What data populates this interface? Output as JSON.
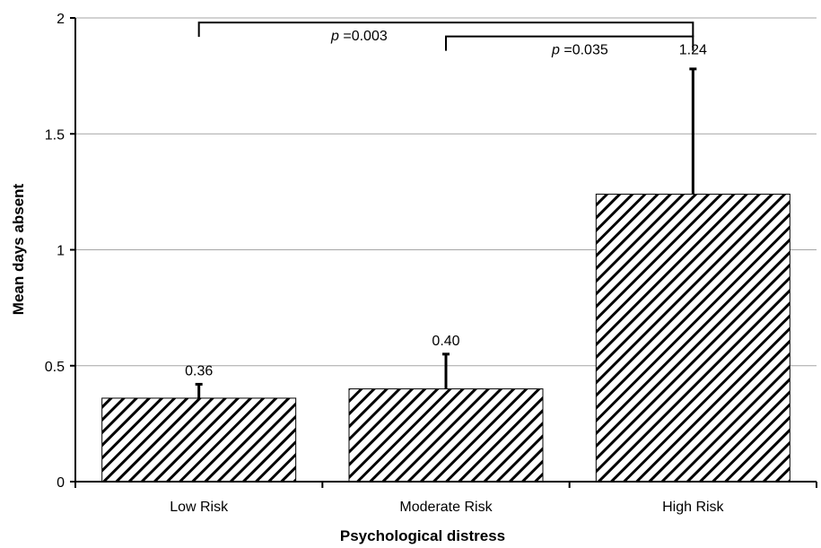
{
  "chart_data": {
    "type": "bar",
    "title": "",
    "xlabel": "Psychological distress",
    "ylabel": "Mean days absent",
    "categories": [
      "Low Risk",
      "Moderate Risk",
      "High Risk"
    ],
    "values": [
      0.36,
      0.4,
      1.24
    ],
    "value_labels": [
      "0.36",
      "0.40",
      "1.24"
    ],
    "error_upper": [
      0.42,
      0.55,
      1.78
    ],
    "ylim": [
      0,
      2
    ],
    "yticks": [
      0,
      0.5,
      1,
      1.5,
      2
    ],
    "ytick_labels": [
      "0",
      "0.5",
      "1",
      "1.5",
      "2"
    ],
    "grid": "horizontal",
    "bar_fill": "diagonal-hatch",
    "colors": {
      "bar_stroke": "#000000",
      "hatch": "#000000",
      "grid": "#a6a6a6"
    },
    "annotations": [
      {
        "from_category": 0,
        "to_category": 2,
        "p_symbol": "p",
        "p_value": " =0.003",
        "bracket_y": 1.98
      },
      {
        "from_category": 1,
        "to_category": 2,
        "p_symbol": "p",
        "p_value": " =0.035",
        "bracket_y": 1.92
      }
    ]
  }
}
